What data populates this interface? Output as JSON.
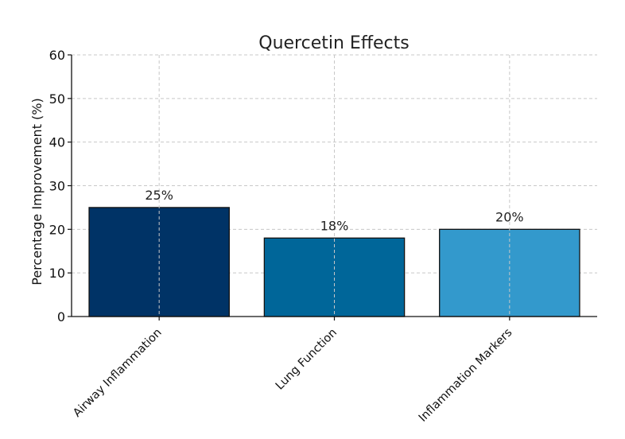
{
  "chart_data": {
    "type": "bar",
    "title": "Quercetin Effects",
    "xlabel": "",
    "ylabel": "Percentage Improvement (%)",
    "categories": [
      "Airway Inflammation",
      "Lung Function",
      "Inflammation Markers"
    ],
    "values": [
      25,
      18,
      20
    ],
    "data_labels": [
      "25%",
      "18%",
      "20%"
    ],
    "colors": [
      "#003366",
      "#006699",
      "#3399CC"
    ],
    "ylim": [
      0,
      60
    ],
    "yticks": [
      0,
      10,
      20,
      30,
      40,
      50,
      60
    ],
    "grid": true,
    "legend": "none"
  }
}
